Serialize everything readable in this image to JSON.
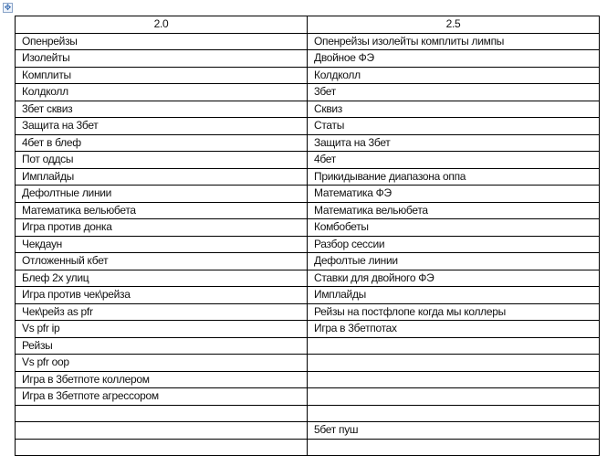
{
  "table": {
    "headers": [
      "2.0",
      "2.5"
    ],
    "rows": [
      [
        "Опенрейзы",
        "Опенрейзы изолейты комплиты лимпы"
      ],
      [
        "Изолейты",
        "Двойное ФЭ"
      ],
      [
        "Комплиты",
        "Колдколл"
      ],
      [
        "Колдколл",
        "3бет"
      ],
      [
        "3бет сквиз",
        "Сквиз"
      ],
      [
        "Защита на 3бет",
        "Статы"
      ],
      [
        "4бет в блеф",
        "Защита на 3бет"
      ],
      [
        "Пот оддсы",
        "4бет"
      ],
      [
        "Имплайды",
        "Прикидывание диапазона оппа"
      ],
      [
        "Дефолтные линии",
        "Математика ФЭ"
      ],
      [
        "Математика вельюбета",
        "Математика вельюбета"
      ],
      [
        "Игра против донка",
        "Комбобеты"
      ],
      [
        "Чекдаун",
        "Разбор сессии"
      ],
      [
        "Отложенный кбет",
        "Дефолтые линии"
      ],
      [
        "Блеф 2х улиц",
        "Ставки для двойного ФЭ"
      ],
      [
        "Игра против чек\\рейза",
        "Имплайды"
      ],
      [
        "Чек\\рейз as pfr",
        "Рейзы на постфлопе когда мы коллеры"
      ],
      [
        "Vs pfr ip",
        "Игра в 3бетпотах"
      ],
      [
        "Рейзы",
        ""
      ],
      [
        "Vs pfr oop",
        ""
      ],
      [
        "Игра в 3бетпоте коллером",
        ""
      ],
      [
        "Игра в 3бетпоте агрессором",
        ""
      ],
      [
        "",
        ""
      ],
      [
        "",
        "5бет пуш"
      ],
      [
        "",
        ""
      ]
    ]
  }
}
